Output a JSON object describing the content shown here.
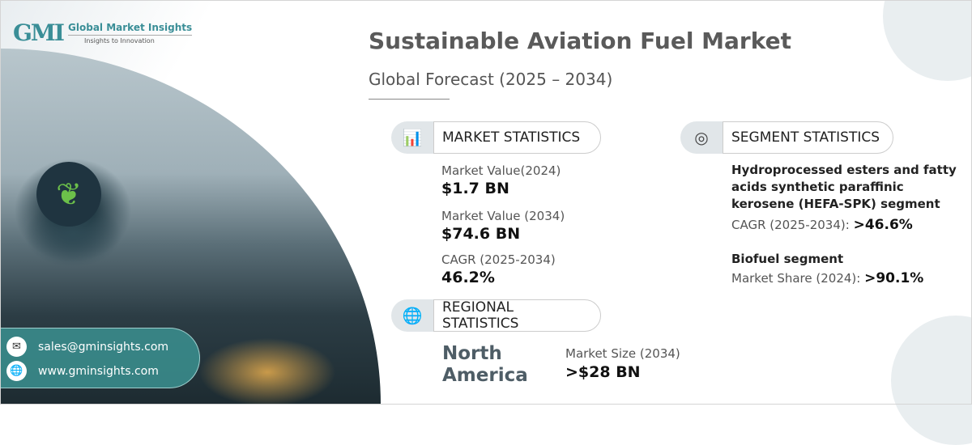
{
  "logo": {
    "mark": "GMI",
    "name": "Global Market Insights",
    "tagline": "Insights to Innovation"
  },
  "header": {
    "title": "Sustainable Aviation Fuel Market",
    "subtitle": "Global Forecast (2025 – 2034)"
  },
  "market": {
    "heading": "MARKET STATISTICS",
    "items": [
      {
        "label": "Market Value(2024)",
        "value": "$1.7 BN"
      },
      {
        "label": "Market Value (2034)",
        "value": "$74.6 BN"
      },
      {
        "label": "CAGR (2025-2034)",
        "value": "46.2%"
      }
    ]
  },
  "segment": {
    "heading": "SEGMENT STATISTICS",
    "s1_line1": "Hydroprocessed esters and fatty",
    "s1_line2": "acids synthetic paraffinic",
    "s1_line3": "kerosene (HEFA-SPK) segment",
    "s1_label": "CAGR (2025-2034):",
    "s1_value": ">46.6%",
    "s2_name": "Biofuel segment",
    "s2_label": "Market Share (2024):",
    "s2_value": ">90.1%"
  },
  "regional": {
    "heading": "REGIONAL STATISTICS",
    "region_line1": "North",
    "region_line2": "America",
    "label": "Market Size (2034)",
    "value": ">$28 BN"
  },
  "contact": {
    "email": "sales@gminsights.com",
    "web": "www.gminsights.com"
  }
}
